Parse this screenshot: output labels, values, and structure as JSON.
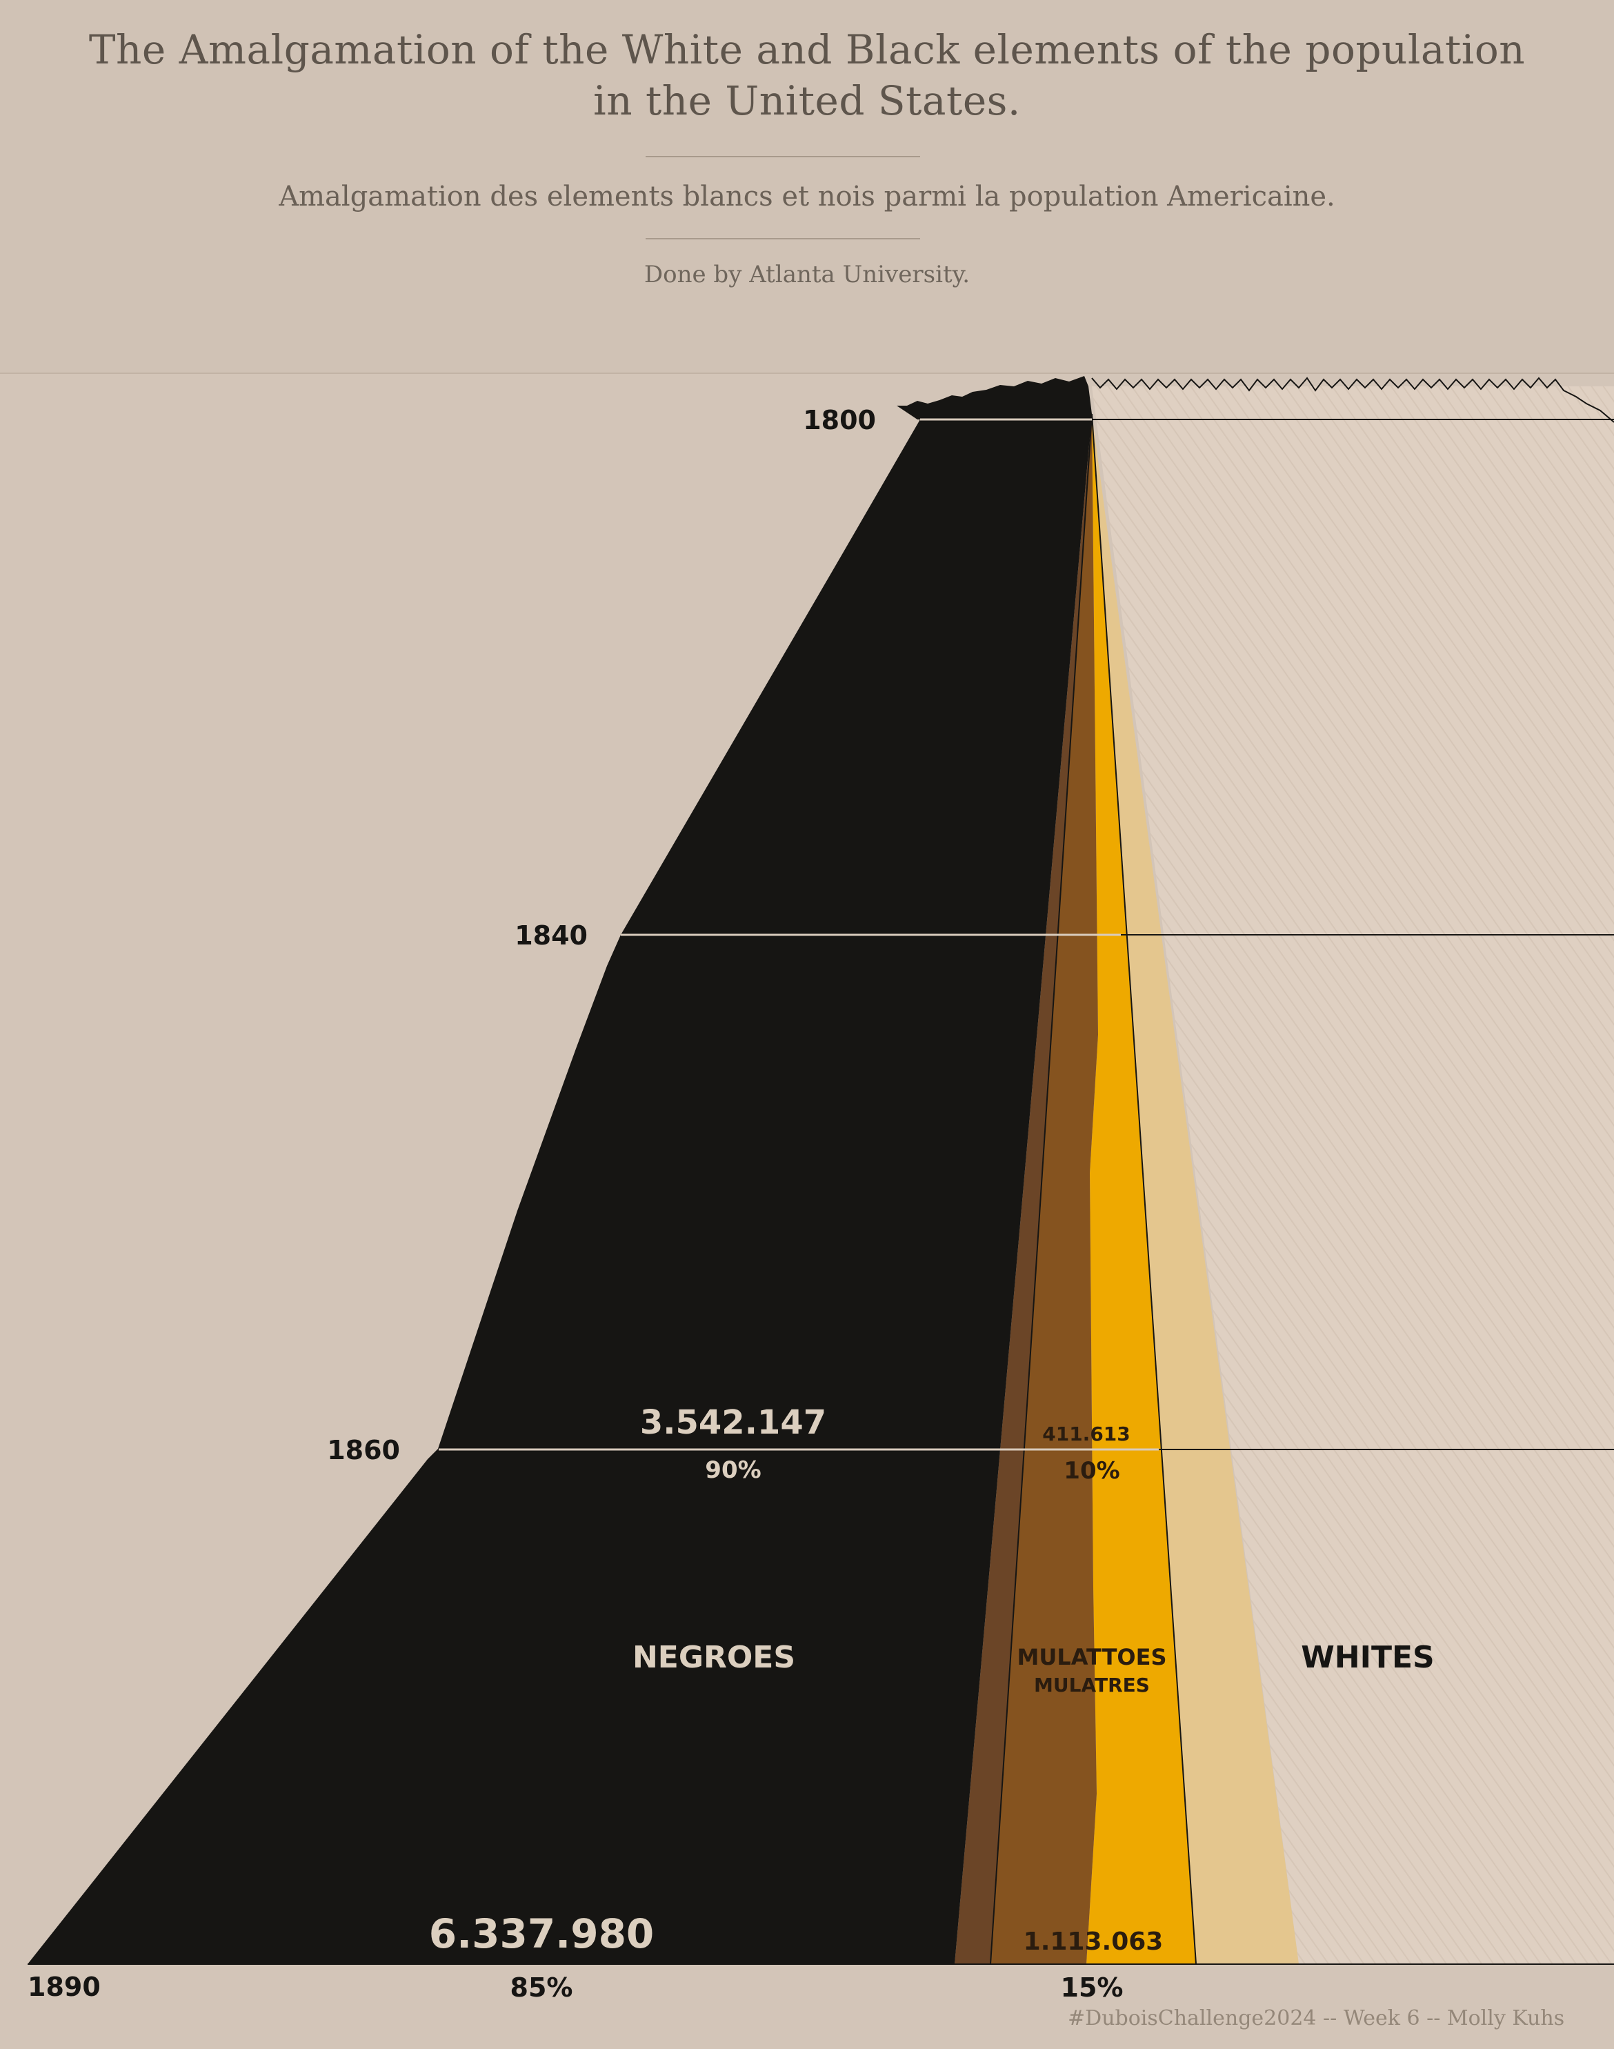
{
  "header": {
    "title_line1": "The Amalgamation of the White and Black elements of the population",
    "title_line2": "in the United States.",
    "subtitle": "Amalgamation des elements blancs et nois parmi la population Americaine.",
    "credit": "Done by Atlanta University."
  },
  "footer": "#DuboisChallenge2024 -- Week 6 -- Molly Kuhs",
  "colors": {
    "background": "#d3c5b8",
    "negroes": "#161513",
    "mulattoes_dark": "#6b4527",
    "mulattoes_mid": "#85531f",
    "mulattoes_gold": "#eea900",
    "mulattoes_light": "#e4c68e",
    "whites": "#dfd0c2",
    "text_dark": "#161513",
    "text_light": "#dccfbf"
  },
  "chart_data": {
    "type": "area",
    "x_labels": [
      "1800",
      "1840",
      "1860",
      "1890"
    ],
    "categories": {
      "negroes": "NEGROES",
      "mulattoes": "MULATTOES",
      "mulattoes_fr": "MULATRES",
      "whites": "WHITES"
    },
    "annotations": {
      "1860": {
        "negroes_value": "3.542.147",
        "negroes_pct": "90%",
        "mulattoes_value": "411.613",
        "mulattoes_pct": "10%"
      },
      "1890": {
        "negroes_value": "6.337.980",
        "negroes_pct": "85%",
        "mulattoes_value": "1.113.063",
        "mulattoes_pct": "15%"
      }
    },
    "series": [
      {
        "name": "NEGROES",
        "years": [
          1800,
          1840,
          1860,
          1890
        ],
        "pct": [
          100,
          95,
          90,
          85
        ]
      },
      {
        "name": "MULATTOES",
        "years": [
          1800,
          1840,
          1860,
          1890
        ],
        "pct": [
          0,
          5,
          10,
          15
        ]
      }
    ]
  }
}
